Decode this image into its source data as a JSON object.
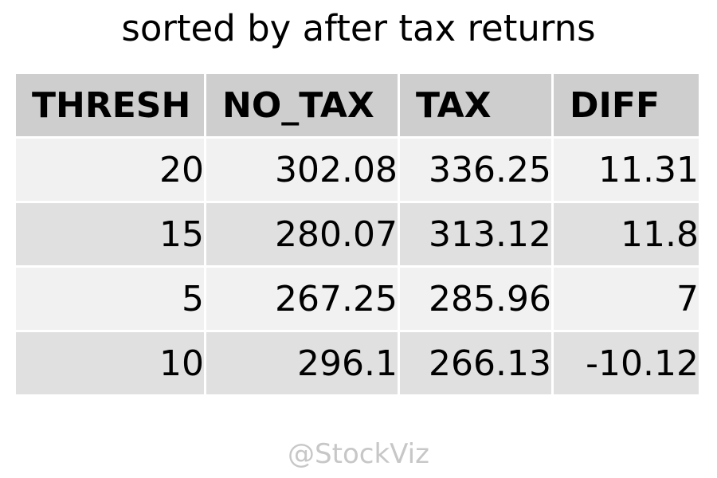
{
  "chart_data": {
    "type": "table",
    "title": "sorted by after tax returns",
    "columns": [
      "THRESH",
      "NO_TAX",
      "TAX",
      "DIFF"
    ],
    "rows": [
      [
        "20",
        "302.08",
        "336.25",
        "11.31"
      ],
      [
        "15",
        "280.07",
        "313.12",
        "11.8"
      ],
      [
        "5",
        "267.25",
        "285.96",
        "7"
      ],
      [
        "10",
        "296.1",
        "266.13",
        "-10.12"
      ]
    ],
    "colors": {
      "header_bg": "#cecece",
      "row_bg_light": "#f1f1f1",
      "row_bg_dark": "#e0e0e0",
      "watermark": "#c7c7c7"
    }
  },
  "watermark": "@StockViz"
}
